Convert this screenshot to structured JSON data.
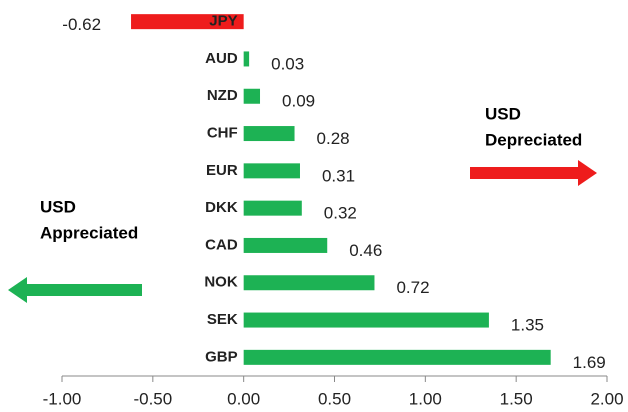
{
  "chart_data": {
    "type": "bar",
    "orientation": "horizontal",
    "categories": [
      "JPY",
      "AUD",
      "NZD",
      "CHF",
      "EUR",
      "DKK",
      "CAD",
      "NOK",
      "SEK",
      "GBP"
    ],
    "values": [
      -0.62,
      0.03,
      0.09,
      0.28,
      0.31,
      0.32,
      0.46,
      0.72,
      1.35,
      1.69
    ],
    "colors": [
      "#ee1c1c",
      "#1db254",
      "#1db254",
      "#1db254",
      "#1db254",
      "#1db254",
      "#1db254",
      "#1db254",
      "#1db254",
      "#1db254"
    ],
    "xlim": [
      -1,
      2
    ],
    "xticks": [
      {
        "value": -1,
        "label": "-1.00"
      },
      {
        "value": -0.5,
        "label": "-0.50"
      },
      {
        "value": 0,
        "label": "0.00"
      },
      {
        "value": 0.5,
        "label": "0.50"
      },
      {
        "value": 1,
        "label": "1.00"
      },
      {
        "value": 1.5,
        "label": "1.50"
      },
      {
        "value": 2,
        "label": "2.00"
      }
    ],
    "grid": false,
    "annotations": [
      {
        "lines": [
          "USD",
          "Depreciated"
        ],
        "color": "#ee1c1c"
      },
      {
        "lines": [
          "USD",
          "Appreciated"
        ],
        "color": "#1db254"
      }
    ]
  }
}
